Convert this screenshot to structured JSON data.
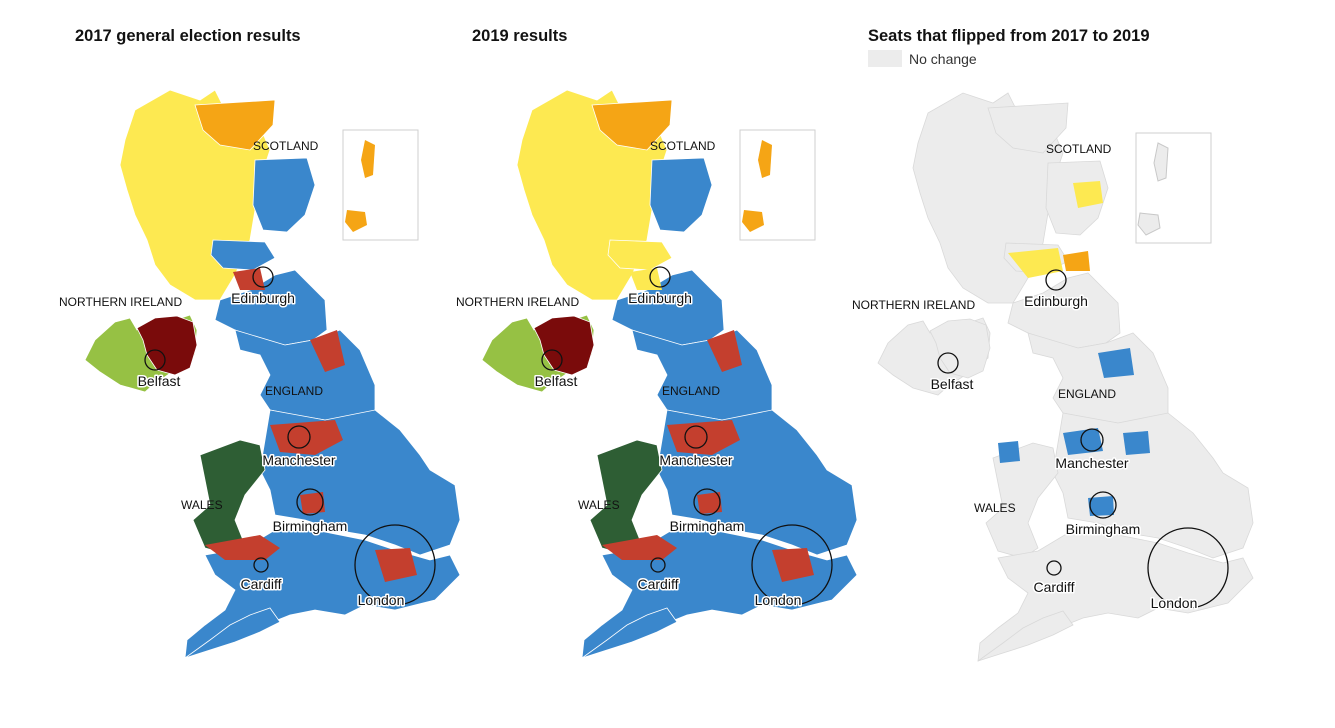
{
  "colors": {
    "conservative": "#3a87cc",
    "labour": "#c43f2e",
    "snp": "#fde951",
    "libdem": "#f5a515",
    "plaid": "#2e5e34",
    "dup": "#7a0b0b",
    "sinn_fein": "#96c144",
    "other": "#8a8a8a",
    "no_change": "#ececec"
  },
  "panels": [
    {
      "id": "2017",
      "title": "2017 general election results",
      "mode": "results",
      "labels": {
        "scotland": "SCOTLAND",
        "northern_ireland": "NORTHERN IRELAND",
        "england": "ENGLAND",
        "wales": "WALES",
        "edinburgh": "Edinburgh",
        "belfast": "Belfast",
        "manchester": "Manchester",
        "birmingham": "Birmingham",
        "cardiff": "Cardiff",
        "london": "London"
      }
    },
    {
      "id": "2019",
      "title": "2019 results",
      "mode": "results",
      "labels": {
        "scotland": "SCOTLAND",
        "northern_ireland": "NORTHERN IRELAND",
        "england": "ENGLAND",
        "wales": "WALES",
        "edinburgh": "Edinburgh",
        "belfast": "Belfast",
        "manchester": "Manchester",
        "birmingham": "Birmingham",
        "cardiff": "Cardiff",
        "london": "London"
      }
    },
    {
      "id": "flipped",
      "title": "Seats that flipped from 2017 to 2019",
      "mode": "flipped",
      "legend_label": "No change",
      "labels": {
        "scotland": "SCOTLAND",
        "northern_ireland": "NORTHERN IRELAND",
        "england": "ENGLAND",
        "wales": "WALES",
        "edinburgh": "Edinburgh",
        "belfast": "Belfast",
        "manchester": "Manchester",
        "birmingham": "Birmingham",
        "cardiff": "Cardiff",
        "london": "London"
      }
    }
  ]
}
